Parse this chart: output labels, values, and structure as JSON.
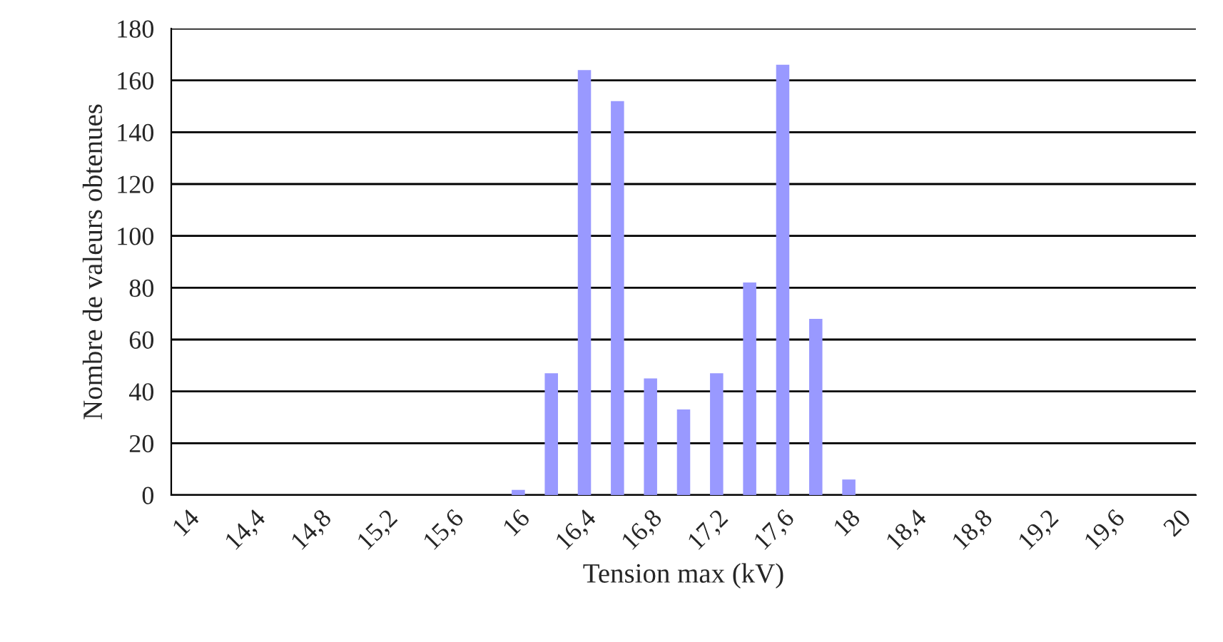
{
  "chart_data": {
    "type": "bar",
    "xlabel": "Tension max (kV)",
    "ylabel": "Nombre de valeurs obtenues",
    "categories": [
      "14",
      null,
      "14,4",
      null,
      "14,8",
      null,
      "15,2",
      null,
      "15,6",
      null,
      "16",
      null,
      "16,4",
      null,
      "16,8",
      null,
      "17,2",
      null,
      "17,6",
      null,
      "18",
      null,
      "18,4",
      null,
      "18,8",
      null,
      "19,2",
      null,
      "19,6",
      null,
      "20"
    ],
    "values": [
      0,
      0,
      0,
      0,
      0,
      0,
      0,
      0,
      0,
      0,
      2,
      47,
      164,
      152,
      45,
      33,
      47,
      82,
      166,
      68,
      6,
      0,
      0,
      0,
      0,
      0,
      0,
      0,
      0,
      0,
      0
    ],
    "color": "#9999ff",
    "ylim": [
      0,
      180
    ],
    "yticks": [
      0,
      20,
      40,
      60,
      80,
      100,
      120,
      140,
      160,
      180
    ],
    "grid": "y"
  }
}
